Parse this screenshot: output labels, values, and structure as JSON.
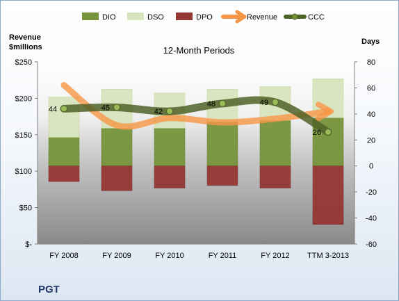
{
  "chart_data": {
    "type": "bar",
    "title": "12-Month Periods",
    "company": "PGT",
    "left_axis": {
      "label_line1": "Revenue",
      "label_line2": "$millions",
      "ylim": [
        0,
        250
      ],
      "ticks": [
        "$-",
        "$50",
        "$100",
        "$150",
        "$200",
        "$250"
      ]
    },
    "right_axis": {
      "label": "Days",
      "ylim": [
        -60,
        80
      ],
      "ticks": [
        "-60",
        "-40",
        "-20",
        "0",
        "20",
        "40",
        "60",
        "80"
      ]
    },
    "categories": [
      "FY 2008",
      "FY 2009",
      "FY 2010",
      "FY 2011",
      "FY 2012",
      "TTM 3-2013"
    ],
    "legend": [
      "DIO",
      "DSO",
      "DPO",
      "Revenue",
      "CCC"
    ],
    "series": [
      {
        "name": "DIO",
        "axis": "days",
        "color": "#77933c",
        "values": [
          22,
          29,
          29,
          34,
          35,
          37
        ]
      },
      {
        "name": "DSO",
        "axis": "days",
        "color": "#d7e4bd",
        "values": [
          31,
          30,
          27,
          25,
          26,
          30
        ]
      },
      {
        "name": "DPO",
        "axis": "days",
        "color": "#953735",
        "values": [
          -12,
          -19,
          -17,
          -15,
          -17,
          -45
        ]
      },
      {
        "name": "Revenue",
        "axis": "revenue",
        "color": "#f79646",
        "values": [
          218,
          163,
          173,
          167,
          172,
          182
        ]
      },
      {
        "name": "CCC",
        "axis": "days",
        "color": "#4f6228",
        "values": [
          44,
          45,
          42,
          48,
          49,
          26
        ]
      }
    ],
    "ccc_labels": [
      "44",
      "45",
      "42",
      "48",
      "49",
      "26"
    ],
    "grid": false,
    "legend_position": "top"
  }
}
